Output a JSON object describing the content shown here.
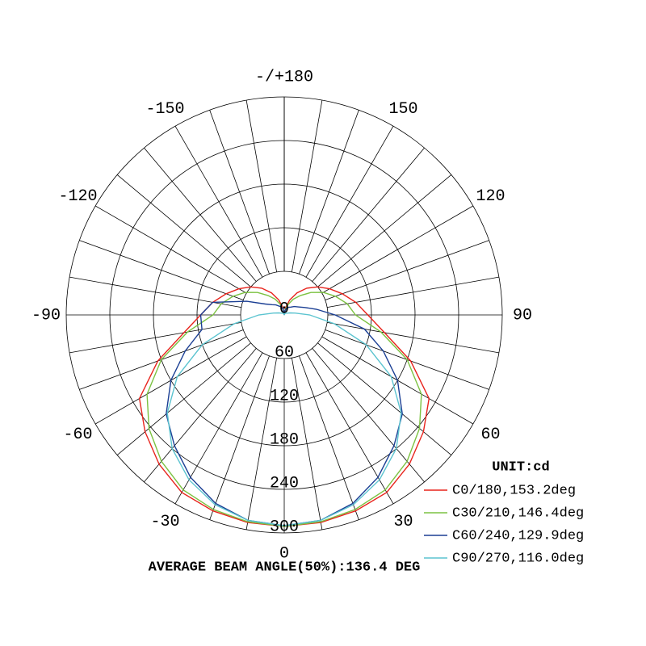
{
  "chart_data": {
    "type": "polar",
    "x": [
      -180,
      -170,
      -160,
      -150,
      -140,
      -130,
      -120,
      -110,
      -100,
      -90,
      -80,
      -70,
      -60,
      -50,
      -40,
      -30,
      -20,
      -10,
      0,
      10,
      20,
      30,
      40,
      50,
      60,
      70,
      80,
      90,
      100,
      110,
      120,
      130,
      140,
      150,
      160,
      170,
      180
    ],
    "series": [
      {
        "name": "C0/180,153.2deg",
        "color": "#e8231c",
        "values": [
          0,
          10,
          22,
          35,
          48,
          60,
          72,
          85,
          100,
          115,
          140,
          185,
          230,
          250,
          268,
          282,
          287,
          290,
          291,
          290,
          287,
          282,
          268,
          250,
          230,
          185,
          140,
          115,
          100,
          85,
          72,
          60,
          48,
          35,
          22,
          10,
          0
        ]
      },
      {
        "name": "C30/210,146.4deg",
        "color": "#7cc242",
        "values": [
          0,
          7,
          15,
          25,
          35,
          48,
          62,
          75,
          88,
          98,
          135,
          180,
          218,
          243,
          263,
          278,
          285,
          289,
          291,
          289,
          285,
          278,
          263,
          243,
          218,
          180,
          135,
          98,
          88,
          75,
          62,
          48,
          35,
          25,
          15,
          7,
          0
        ]
      },
      {
        "name": "C60/240,129.9deg",
        "color": "#1b3f94",
        "values": [
          0,
          8,
          12,
          14,
          18,
          22,
          30,
          55,
          100,
          115,
          115,
          145,
          180,
          212,
          235,
          258,
          276,
          287,
          290,
          287,
          276,
          258,
          235,
          212,
          180,
          145,
          112,
          70,
          45,
          30,
          22,
          18,
          14,
          12,
          10,
          6,
          0
        ]
      },
      {
        "name": "C90/270,116.0deg",
        "color": "#5cc4d0",
        "values": [
          0,
          1,
          1,
          2,
          3,
          4,
          5,
          8,
          15,
          35,
          70,
          120,
          170,
          210,
          240,
          262,
          278,
          287,
          290,
          287,
          278,
          262,
          240,
          210,
          170,
          120,
          70,
          35,
          15,
          8,
          5,
          4,
          3,
          2,
          1,
          1,
          0
        ]
      }
    ],
    "rlim": [
      0,
      300
    ],
    "rticks": [
      0,
      60,
      120,
      180,
      240,
      300
    ],
    "thetaticks": [
      0,
      30,
      60,
      90,
      120,
      150,
      {
        "value": 180,
        "label": "-/+180"
      },
      -150,
      -120,
      -90,
      -60,
      -30
    ],
    "legend_title": "UNIT:cd",
    "footer": "AVERAGE BEAM ANGLE(50%):136.4 DEG",
    "grid": true
  }
}
